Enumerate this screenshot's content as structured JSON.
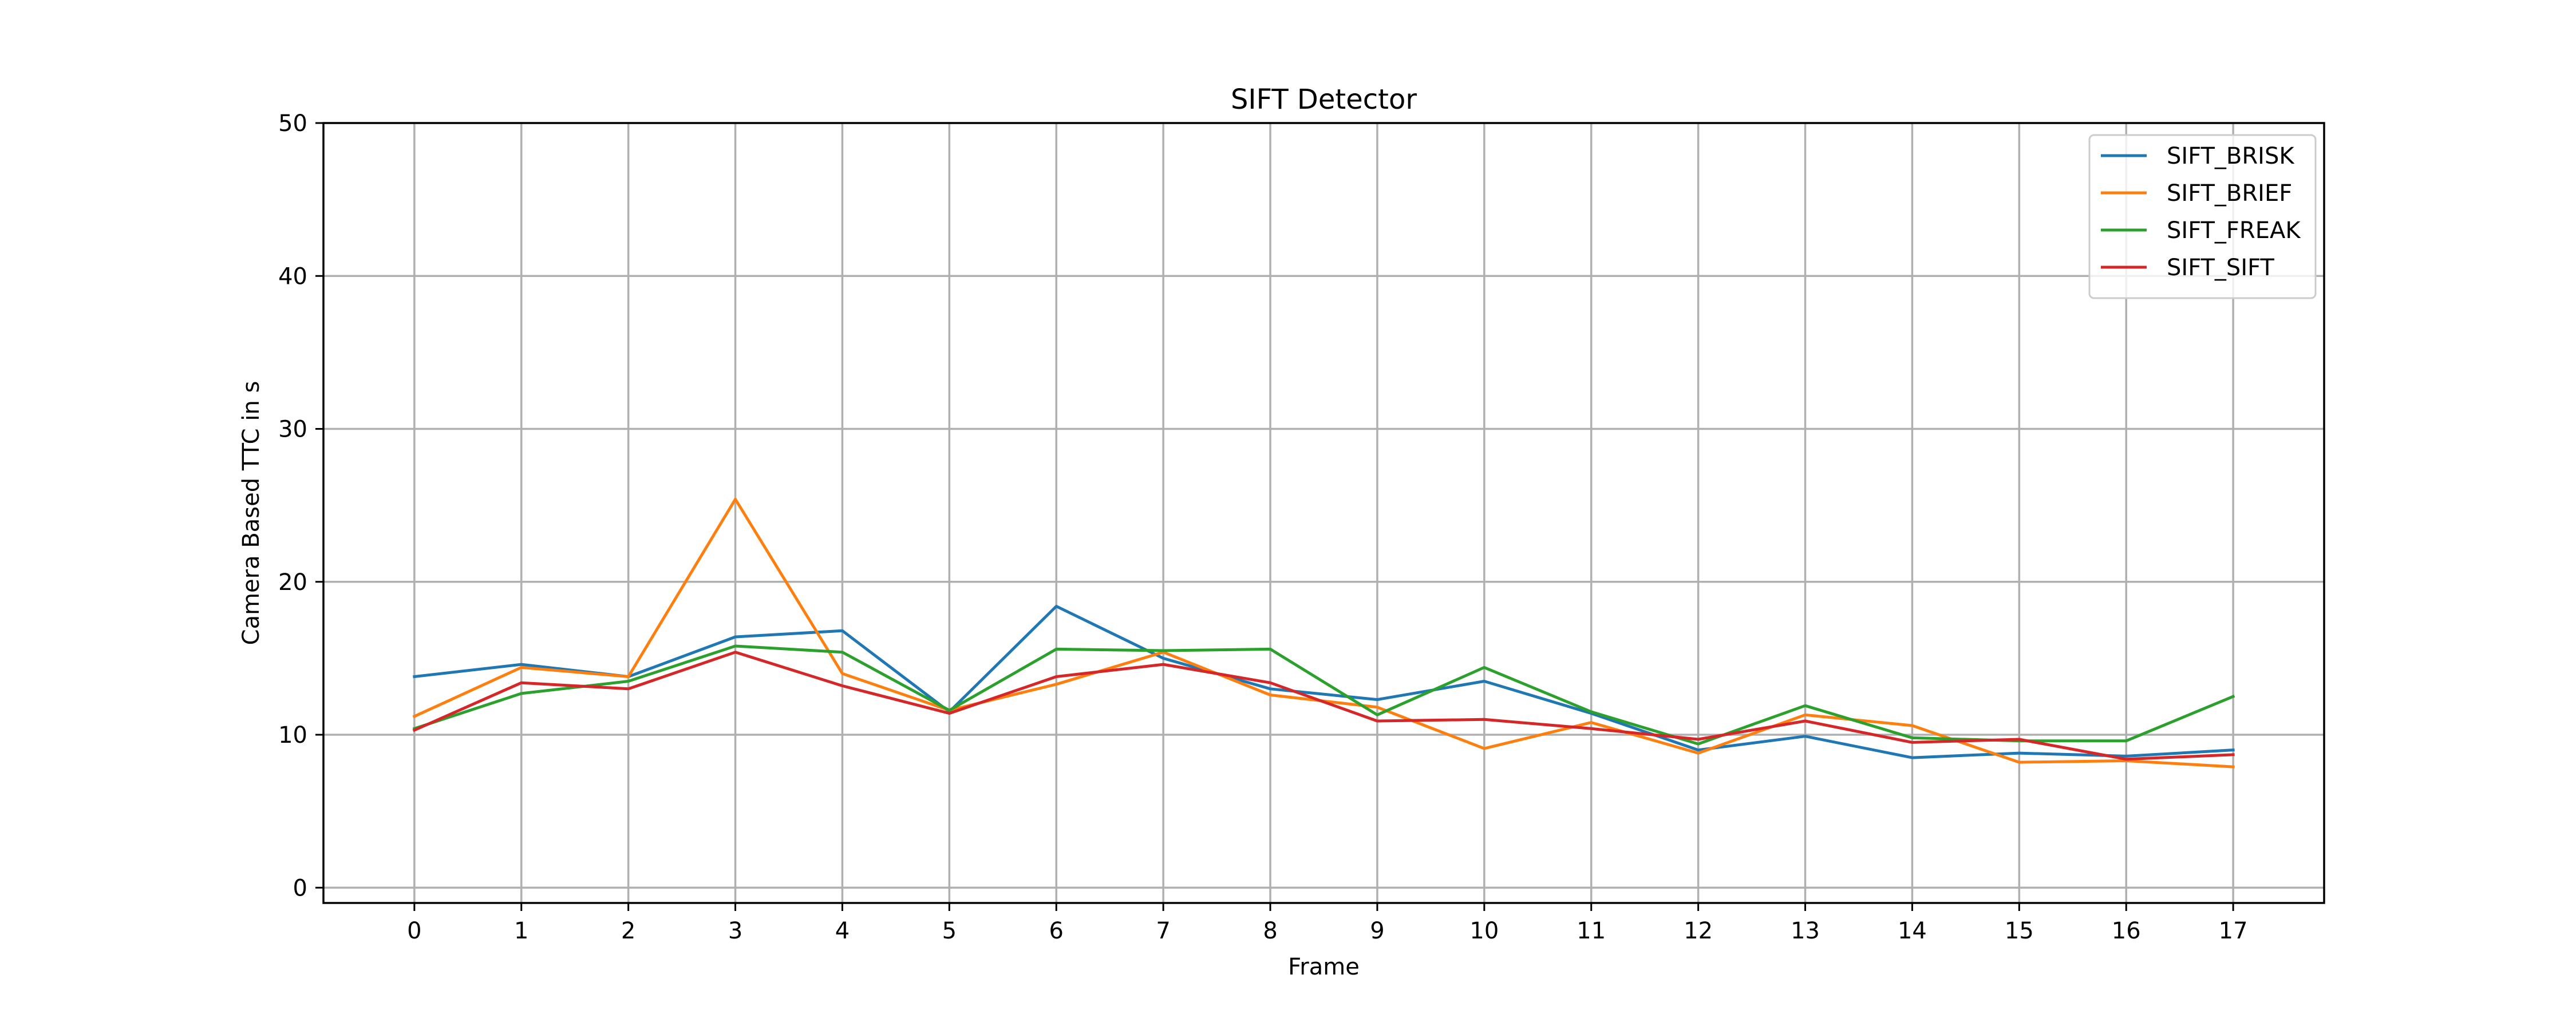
{
  "chart_data": {
    "type": "line",
    "title": "SIFT Detector",
    "xlabel": "Frame",
    "ylabel": "Camera Based TTC in s",
    "x": [
      0,
      1,
      2,
      3,
      4,
      5,
      6,
      7,
      8,
      9,
      10,
      11,
      12,
      13,
      14,
      15,
      16,
      17
    ],
    "xlim": [
      -0.85,
      17.85
    ],
    "ylim": [
      -1,
      50
    ],
    "yticks": [
      0,
      10,
      20,
      30,
      40,
      50
    ],
    "grid": true,
    "legend_position": "top-right",
    "series": [
      {
        "name": "SIFT_BRISK",
        "color": "#1f77b4",
        "values": [
          13.8,
          14.6,
          13.8,
          16.4,
          16.8,
          11.5,
          18.4,
          15.0,
          13.0,
          12.3,
          13.5,
          11.4,
          9.0,
          9.9,
          8.5,
          8.8,
          8.6,
          9.0
        ]
      },
      {
        "name": "SIFT_BRIEF",
        "color": "#ff7f0e",
        "values": [
          11.2,
          14.4,
          13.8,
          25.4,
          14.0,
          11.6,
          13.3,
          15.4,
          12.6,
          11.8,
          9.1,
          10.8,
          8.8,
          11.3,
          10.6,
          8.2,
          8.3,
          7.9
        ]
      },
      {
        "name": "SIFT_FREAK",
        "color": "#2ca02c",
        "values": [
          10.4,
          12.7,
          13.5,
          15.8,
          15.4,
          11.6,
          15.6,
          15.5,
          15.6,
          11.3,
          14.4,
          11.5,
          9.4,
          11.9,
          9.8,
          9.6,
          9.6,
          12.5
        ]
      },
      {
        "name": "SIFT_SIFT",
        "color": "#d62728",
        "values": [
          10.3,
          13.4,
          13.0,
          15.4,
          13.2,
          11.4,
          13.8,
          14.6,
          13.4,
          10.9,
          11.0,
          10.4,
          9.7,
          10.9,
          9.5,
          9.7,
          8.4,
          8.7
        ]
      }
    ]
  }
}
